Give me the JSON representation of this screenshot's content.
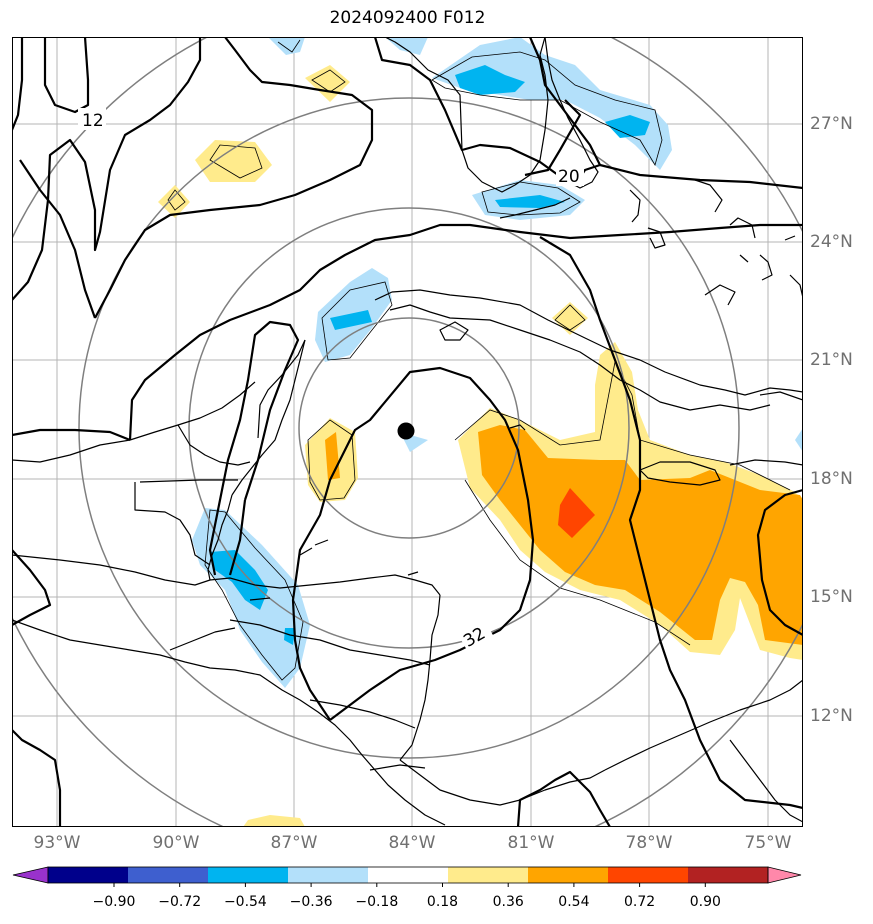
{
  "title": "2024092400 F012",
  "map": {
    "region": "Gulf of Mexico, Caribbean Sea and Central America",
    "lon_range": [
      -94,
      -74.5
    ],
    "lat_range": [
      9,
      29
    ],
    "lon_ticks": [
      "93°W",
      "90°W",
      "87°W",
      "84°W",
      "81°W",
      "78°W",
      "75°W"
    ],
    "lat_ticks": [
      "27°N",
      "24°N",
      "21°N",
      "18°N",
      "15°N",
      "12°N"
    ],
    "storm_center": {
      "lon": -84.0,
      "lat": 19.2,
      "label": "storm center marker"
    },
    "range_rings": "concentric gray circles about the storm center",
    "contour_labels": [
      "12",
      "20",
      "32"
    ],
    "shading_colors": {
      "light_blue": "#b3e0fa",
      "mid_blue": "#00b4f0",
      "light_yellow": "#ffeb8c",
      "orange": "#ffa500",
      "red_orange": "#ff4500"
    }
  },
  "colorbar": {
    "ticks": [
      "−0.90",
      "−0.72",
      "−0.54",
      "−0.36",
      "−0.18",
      "0.18",
      "0.36",
      "0.54",
      "0.72",
      "0.90"
    ],
    "colors": [
      "#9932cc",
      "#00008b",
      "#3e5fcf",
      "#00b4f0",
      "#b3e0fa",
      "#ffffff",
      "#ffeb8c",
      "#ffa500",
      "#ff4500",
      "#b22222",
      "#ff88aa"
    ]
  }
}
